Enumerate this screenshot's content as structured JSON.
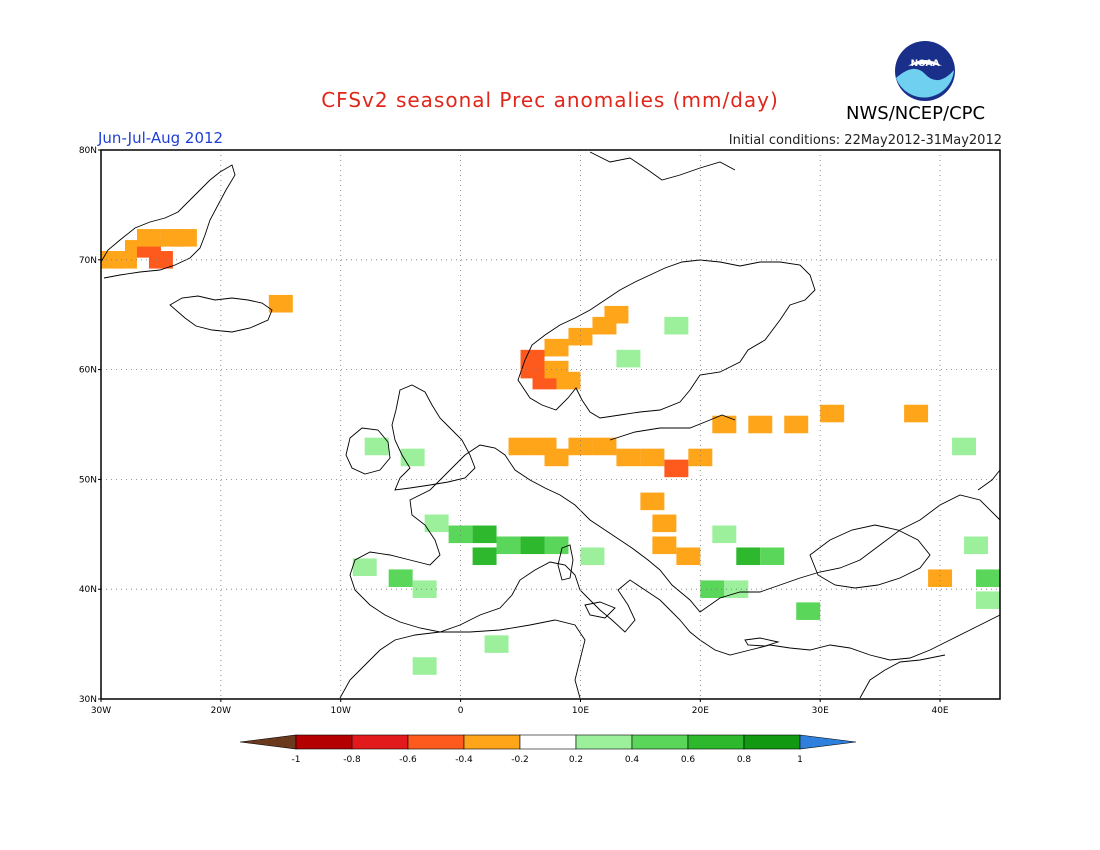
{
  "header": {
    "title": "CFSv2 seasonal Prec anomalies (mm/day)",
    "period": "Jun-Jul-Aug 2012",
    "initial_conditions": "Initial conditions: 22May2012-31May2012",
    "agency": "NWS/NCEP/CPC",
    "logo_text": "NOAA"
  },
  "axes": {
    "lon_labels": [
      "30W",
      "20W",
      "10W",
      "0",
      "10E",
      "20E",
      "30E",
      "40E"
    ],
    "lat_labels": [
      "80N",
      "70N",
      "60N",
      "50N",
      "40N",
      "30N"
    ],
    "lon_range": [
      -30,
      45
    ],
    "lat_range": [
      30,
      80
    ],
    "gridlines": "dotted"
  },
  "colorbar": {
    "labels": [
      "-1",
      "-0.8",
      "-0.6",
      "-0.4",
      "-0.2",
      "0.2",
      "0.4",
      "0.6",
      "0.8",
      "1"
    ],
    "colors": [
      "#6b3a1e",
      "#b40000",
      "#e31a1c",
      "#ff5a1e",
      "#ffa51a",
      "#ffffff",
      "#9cf09c",
      "#5ad65a",
      "#2eb82e",
      "#119911",
      "#2f7fdd"
    ]
  },
  "anomalies": [
    {
      "lon": -29,
      "lat": 70,
      "v": -0.3
    },
    {
      "lon": -28,
      "lat": 70,
      "v": -0.3
    },
    {
      "lon": -27,
      "lat": 71,
      "v": -0.3
    },
    {
      "lon": -26,
      "lat": 71,
      "v": -0.5
    },
    {
      "lon": -25,
      "lat": 70,
      "v": -0.6
    },
    {
      "lon": -24,
      "lat": 72,
      "v": -0.3
    },
    {
      "lon": -23,
      "lat": 72,
      "v": -0.3
    },
    {
      "lon": -26,
      "lat": 72,
      "v": -0.3
    },
    {
      "lon": -15,
      "lat": 66,
      "v": -0.3
    },
    {
      "lon": 6,
      "lat": 61,
      "v": -0.5
    },
    {
      "lon": 6,
      "lat": 60,
      "v": -0.6
    },
    {
      "lon": 7,
      "lat": 59,
      "v": -0.5
    },
    {
      "lon": 8,
      "lat": 60,
      "v": -0.3
    },
    {
      "lon": 8,
      "lat": 62,
      "v": -0.3
    },
    {
      "lon": 9,
      "lat": 59,
      "v": -0.3
    },
    {
      "lon": 10,
      "lat": 63,
      "v": -0.3
    },
    {
      "lon": 12,
      "lat": 64,
      "v": -0.3
    },
    {
      "lon": 13,
      "lat": 65,
      "v": -0.3
    },
    {
      "lon": 5,
      "lat": 53,
      "v": -0.3
    },
    {
      "lon": 7,
      "lat": 53,
      "v": -0.3
    },
    {
      "lon": 8,
      "lat": 52,
      "v": -0.3
    },
    {
      "lon": 10,
      "lat": 53,
      "v": -0.3
    },
    {
      "lon": 12,
      "lat": 53,
      "v": -0.3
    },
    {
      "lon": 14,
      "lat": 52,
      "v": -0.3
    },
    {
      "lon": 16,
      "lat": 52,
      "v": -0.3
    },
    {
      "lon": 18,
      "lat": 51,
      "v": -0.5
    },
    {
      "lon": 20,
      "lat": 52,
      "v": -0.3
    },
    {
      "lon": 22,
      "lat": 55,
      "v": -0.3
    },
    {
      "lon": 25,
      "lat": 55,
      "v": -0.3
    },
    {
      "lon": 28,
      "lat": 55,
      "v": -0.3
    },
    {
      "lon": 16,
      "lat": 48,
      "v": -0.3
    },
    {
      "lon": 17,
      "lat": 46,
      "v": -0.3
    },
    {
      "lon": 17,
      "lat": 44,
      "v": -0.3
    },
    {
      "lon": 19,
      "lat": 43,
      "v": -0.3
    },
    {
      "lon": 38,
      "lat": 56,
      "v": -0.3
    },
    {
      "lon": 31,
      "lat": 56,
      "v": -0.3
    },
    {
      "lon": 40,
      "lat": 41,
      "v": -0.3
    },
    {
      "lon": -7,
      "lat": 53,
      "v": 0.3
    },
    {
      "lon": -4,
      "lat": 52,
      "v": 0.3
    },
    {
      "lon": -2,
      "lat": 46,
      "v": 0.3
    },
    {
      "lon": 0,
      "lat": 45,
      "v": 0.4
    },
    {
      "lon": 2,
      "lat": 45,
      "v": 0.6
    },
    {
      "lon": 2,
      "lat": 43,
      "v": 0.7
    },
    {
      "lon": 4,
      "lat": 44,
      "v": 0.5
    },
    {
      "lon": 6,
      "lat": 44,
      "v": 0.6
    },
    {
      "lon": 8,
      "lat": 44,
      "v": 0.4
    },
    {
      "lon": -8,
      "lat": 42,
      "v": 0.3
    },
    {
      "lon": -5,
      "lat": 41,
      "v": 0.4
    },
    {
      "lon": -3,
      "lat": 40,
      "v": 0.3
    },
    {
      "lon": 11,
      "lat": 43,
      "v": 0.3
    },
    {
      "lon": 22,
      "lat": 45,
      "v": 0.3
    },
    {
      "lon": 24,
      "lat": 43,
      "v": 0.6
    },
    {
      "lon": 26,
      "lat": 43,
      "v": 0.4
    },
    {
      "lon": 21,
      "lat": 40,
      "v": 0.5
    },
    {
      "lon": 23,
      "lat": 40,
      "v": 0.3
    },
    {
      "lon": 29,
      "lat": 38,
      "v": 0.4
    },
    {
      "lon": 3,
      "lat": 35,
      "v": 0.3
    },
    {
      "lon": -3,
      "lat": 33,
      "v": 0.3
    },
    {
      "lon": 14,
      "lat": 61,
      "v": 0.3
    },
    {
      "lon": 18,
      "lat": 64,
      "v": 0.3
    },
    {
      "lon": 42,
      "lat": 53,
      "v": 0.3
    },
    {
      "lon": 43,
      "lat": 44,
      "v": 0.3
    },
    {
      "lon": 44,
      "lat": 41,
      "v": 0.4
    },
    {
      "lon": 44,
      "lat": 39,
      "v": 0.3
    }
  ]
}
